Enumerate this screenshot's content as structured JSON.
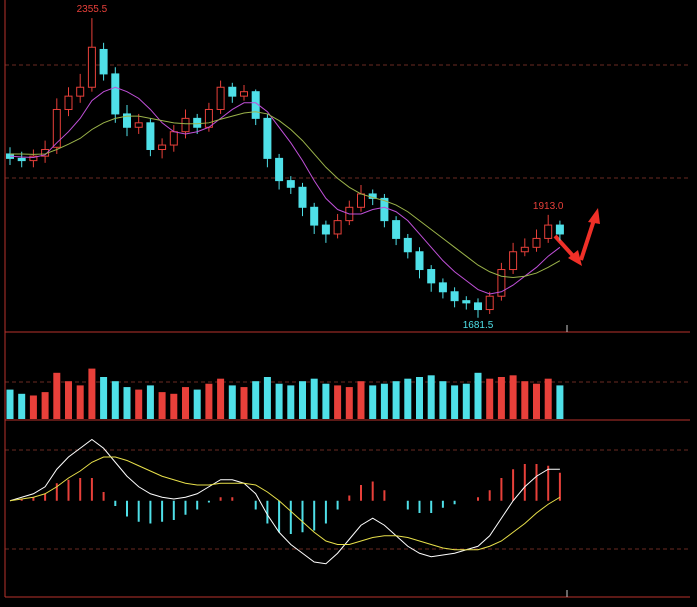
{
  "chart_data": {
    "type": "candlestick",
    "open": [
      2050,
      2040,
      2035,
      2045,
      2065,
      2150,
      2180,
      2200,
      2285,
      2230,
      2140,
      2110,
      2120,
      2060,
      2070,
      2100,
      2130,
      2110,
      2150,
      2200,
      2180,
      2190,
      2130,
      2040,
      1990,
      1975,
      1930,
      1890,
      1870,
      1900,
      1930,
      1960,
      1950,
      1900,
      1860,
      1830,
      1790,
      1760,
      1740,
      1720,
      1715,
      1700,
      1730,
      1790,
      1830,
      1840,
      1860,
      1890
    ],
    "high": [
      2065,
      2055,
      2060,
      2080,
      2175,
      2200,
      2230,
      2355.5,
      2300,
      2245,
      2160,
      2140,
      2130,
      2085,
      2115,
      2150,
      2140,
      2165,
      2215,
      2210,
      2205,
      2195,
      2140,
      2050,
      2000,
      1985,
      1940,
      1900,
      1915,
      1945,
      1980,
      1970,
      1960,
      1910,
      1870,
      1840,
      1800,
      1770,
      1750,
      1730,
      1725,
      1740,
      1805,
      1850,
      1860,
      1880,
      1913.0,
      1900
    ],
    "low": [
      2025,
      2020,
      2020,
      2030,
      2050,
      2135,
      2165,
      2190,
      2215,
      2120,
      2090,
      2095,
      2045,
      2040,
      2055,
      2085,
      2095,
      2100,
      2140,
      2165,
      2170,
      2115,
      2020,
      1970,
      1960,
      1910,
      1870,
      1850,
      1860,
      1890,
      1920,
      1935,
      1885,
      1845,
      1815,
      1770,
      1740,
      1725,
      1705,
      1700,
      1681.5,
      1690,
      1720,
      1780,
      1820,
      1830,
      1850,
      1855
    ],
    "close": [
      2040,
      2035,
      2045,
      2060,
      2150,
      2180,
      2200,
      2290,
      2230,
      2140,
      2110,
      2120,
      2060,
      2070,
      2100,
      2130,
      2110,
      2150,
      2200,
      2180,
      2190,
      2130,
      2040,
      1990,
      1975,
      1930,
      1890,
      1870,
      1900,
      1930,
      1960,
      1950,
      1900,
      1860,
      1830,
      1790,
      1760,
      1740,
      1720,
      1715,
      1700,
      1730,
      1790,
      1830,
      1840,
      1860,
      1890,
      1870
    ],
    "up_color": "#e8403a",
    "down_color": "#4fe0e8",
    "ylim": [
      1654,
      2385
    ],
    "series": [
      {
        "color": "#c050d8",
        "values": [
          2045,
          2043,
          2042,
          2048,
          2075,
          2100,
          2130,
          2170,
          2190,
          2200,
          2190,
          2175,
          2150,
          2120,
          2100,
          2095,
          2100,
          2110,
          2130,
          2150,
          2165,
          2165,
          2145,
          2110,
          2075,
          2035,
          1990,
          1950,
          1925,
          1915,
          1915,
          1925,
          1930,
          1920,
          1900,
          1870,
          1840,
          1810,
          1785,
          1765,
          1745,
          1735,
          1740,
          1755,
          1775,
          1795,
          1820,
          1840
        ]
      },
      {
        "color": "#9bb34a",
        "values": [
          2050,
          2050,
          2049,
          2050,
          2060,
          2072,
          2085,
          2105,
          2120,
          2130,
          2135,
          2135,
          2130,
          2125,
          2120,
          2118,
          2118,
          2120,
          2128,
          2135,
          2142,
          2145,
          2140,
          2125,
          2105,
          2080,
          2050,
          2020,
          1995,
          1975,
          1960,
          1952,
          1945,
          1935,
          1920,
          1900,
          1880,
          1860,
          1840,
          1820,
          1800,
          1785,
          1775,
          1772,
          1775,
          1782,
          1795,
          1810
        ]
      }
    ],
    "annotations": [
      {
        "value": 2355.5,
        "label": "2355.5"
      },
      {
        "value": 1913.0,
        "label": "1913.0"
      },
      {
        "value": 1681.5,
        "label": "1681.5"
      }
    ],
    "volume": {
      "ylim": [
        0,
        100
      ],
      "values": [
        35,
        30,
        28,
        32,
        55,
        45,
        40,
        60,
        50,
        45,
        38,
        35,
        40,
        32,
        30,
        38,
        35,
        42,
        48,
        40,
        38,
        45,
        50,
        42,
        40,
        45,
        48,
        42,
        40,
        38,
        45,
        40,
        42,
        45,
        48,
        50,
        52,
        45,
        40,
        42,
        55,
        48,
        50,
        52,
        45,
        42,
        48,
        40
      ]
    },
    "macd": {
      "ylim": [
        -55,
        45
      ],
      "histogram": [
        0,
        1,
        2,
        4,
        10,
        12,
        13,
        13,
        5,
        -3,
        -9,
        -12,
        -13,
        -12,
        -11,
        -8,
        -5,
        -1,
        2,
        2,
        0,
        -5,
        -13,
        -18,
        -19,
        -18,
        -17,
        -13,
        -5,
        3,
        9,
        11,
        6,
        0,
        -5,
        -7,
        -7,
        -4,
        -2,
        0,
        2,
        6,
        13,
        18,
        21,
        21,
        20,
        16
      ],
      "dif": {
        "color": "#ffffff",
        "values": [
          0,
          2,
          4,
          8,
          18,
          25,
          30,
          35,
          30,
          22,
          14,
          8,
          4,
          2,
          1,
          2,
          4,
          8,
          12,
          12,
          10,
          4,
          -8,
          -18,
          -25,
          -30,
          -35,
          -36,
          -30,
          -22,
          -14,
          -10,
          -14,
          -20,
          -26,
          -30,
          -32,
          -31,
          -30,
          -28,
          -26,
          -20,
          -10,
          0,
          8,
          14,
          18,
          18
        ]
      },
      "dea": {
        "color": "#e8e04a",
        "values": [
          0,
          1,
          2,
          4,
          8,
          13,
          17,
          22,
          25,
          25,
          23,
          20,
          17,
          14,
          12,
          10,
          9,
          9,
          10,
          10,
          10,
          9,
          5,
          0,
          -6,
          -12,
          -18,
          -23,
          -25,
          -25,
          -23,
          -21,
          -20,
          -20,
          -21,
          -23,
          -25,
          -27,
          -28,
          -28,
          -28,
          -26,
          -23,
          -18,
          -13,
          -7,
          -2,
          2
        ]
      }
    }
  }
}
